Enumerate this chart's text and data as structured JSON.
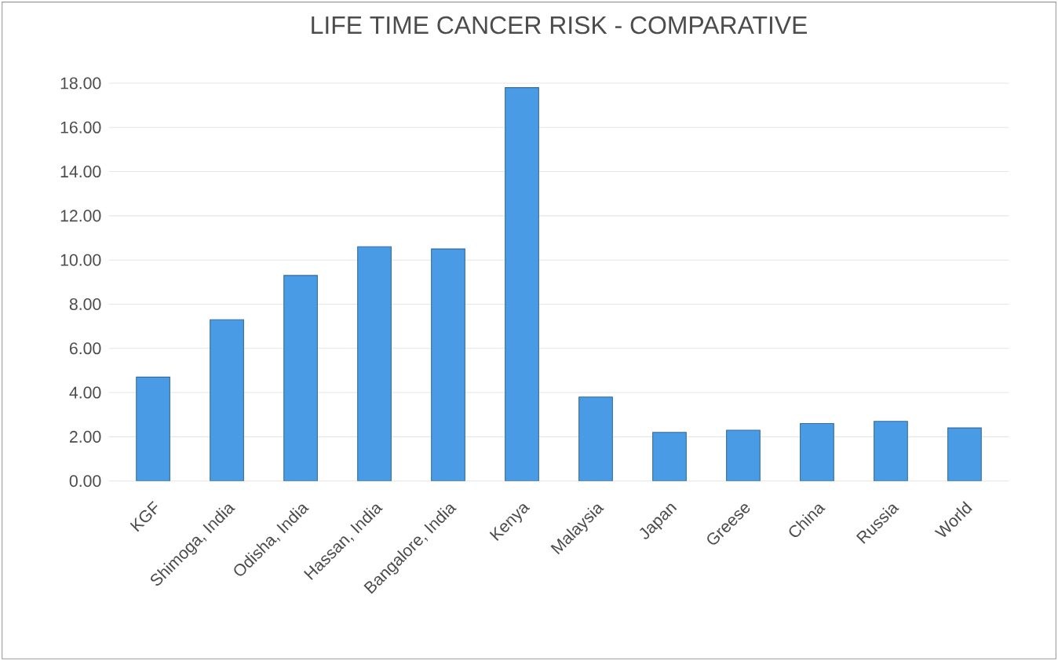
{
  "chart_data": {
    "type": "bar",
    "title": "LIFE TIME CANCER RISK - COMPARATIVE",
    "categories": [
      "KGF",
      "Shimoga, India",
      "Odisha, India",
      "Hassan, India",
      "Bangalore, India",
      "Kenya",
      "Malaysia",
      "Japan",
      "Greese",
      "China",
      "Russia",
      "World"
    ],
    "values": [
      4.7,
      7.3,
      9.3,
      10.6,
      10.5,
      17.8,
      3.8,
      2.2,
      2.3,
      2.6,
      2.7,
      2.4
    ],
    "color": "#4a9be6",
    "ylim": [
      0,
      18
    ],
    "yticks": [
      {
        "value": 0,
        "label": "0.00"
      },
      {
        "value": 2,
        "label": "2.00"
      },
      {
        "value": 4,
        "label": "4.00"
      },
      {
        "value": 6,
        "label": "6.00"
      },
      {
        "value": 8,
        "label": "8.00"
      },
      {
        "value": 10,
        "label": "10.00"
      },
      {
        "value": 12,
        "label": "12.00"
      },
      {
        "value": 14,
        "label": "14.00"
      },
      {
        "value": 16,
        "label": "16.00"
      },
      {
        "value": 18,
        "label": "18.00"
      }
    ],
    "grid": "y"
  }
}
